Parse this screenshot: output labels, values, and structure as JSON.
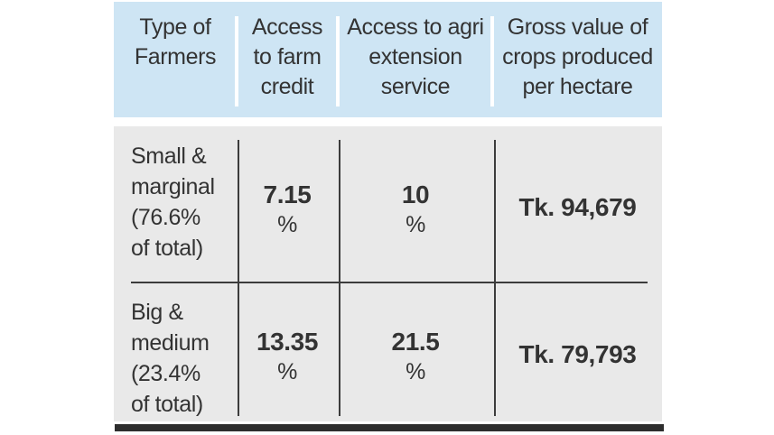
{
  "chart_data": {
    "type": "table",
    "columns": [
      "Type of Farmers",
      "Access to farm credit",
      "Access to agri extension service",
      "Gross value of crops produced per hectare"
    ],
    "rows": [
      [
        "Small & marginal (76.6% of total)",
        "7.15 %",
        "10 %",
        "Tk. 94,679"
      ],
      [
        "Big & medium (23.4% of total)",
        "13.35 %",
        "21.5 %",
        "Tk. 79,793"
      ]
    ]
  },
  "table": {
    "headers": [
      {
        "label": "Type of\nFarmers"
      },
      {
        "label": "Access\nto farm\ncredit"
      },
      {
        "label": "Access to agri\nextension\nservice"
      },
      {
        "label": "Gross value of\ncrops produced\nper hectare"
      }
    ],
    "rows": [
      {
        "farmer_type": "Small &\nmarginal\n(76.6%\nof total)",
        "farm_credit": {
          "value": "7.15",
          "unit": "%"
        },
        "agri_extension": {
          "value": "10",
          "unit": "%"
        },
        "gross_value": "Tk. 94,679"
      },
      {
        "farmer_type": "Big &\nmedium\n(23.4%\nof total)",
        "farm_credit": {
          "value": "13.35",
          "unit": "%"
        },
        "agri_extension": {
          "value": "21.5",
          "unit": "%"
        },
        "gross_value": "Tk. 79,793"
      }
    ]
  },
  "colors": {
    "header_bg": "#cee5f4",
    "body_bg": "#e9e9e9",
    "text": "#333333",
    "divider_white": "#ffffff",
    "divider_dark": "#3c3c3c",
    "bottom_bar": "#2d2d2d"
  }
}
